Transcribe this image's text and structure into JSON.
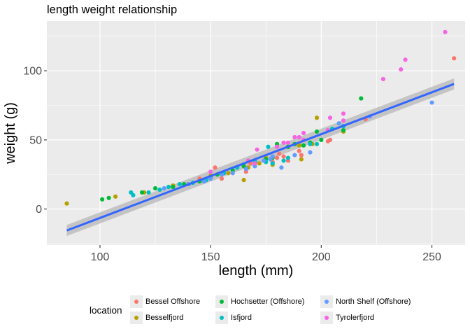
{
  "chart_data": {
    "type": "scatter",
    "title": "length weight relationship",
    "xlabel": "length (mm)",
    "ylabel": "weight (g)",
    "xlim": [
      76,
      265
    ],
    "ylim": [
      -26,
      136
    ],
    "x_ticks": [
      100,
      150,
      200,
      250
    ],
    "y_ticks": [
      0,
      50,
      100
    ],
    "grid": true,
    "legend": {
      "title": "location",
      "placement": "bottom",
      "entries": [
        {
          "name": "Bessel Offshore",
          "color": "#F8766D"
        },
        {
          "name": "Besselfjord",
          "color": "#B79F00"
        },
        {
          "name": "Hochsetter (Offshore)",
          "color": "#00BA38"
        },
        {
          "name": "Isfjord",
          "color": "#00BFC4"
        },
        {
          "name": "North Shelf (Offshore)",
          "color": "#619CFF"
        },
        {
          "name": "Tyrolerfjord",
          "color": "#F564E3"
        }
      ]
    },
    "fit_line": {
      "method": "linear",
      "color": "#3366FF",
      "ribbon_color": "#bdbdbd",
      "x": [
        85,
        260
      ],
      "y": [
        -15.5,
        90.5
      ],
      "se_lower": [
        -19.5,
        86.5
      ],
      "se_upper": [
        -11.5,
        94.5
      ]
    },
    "series": [
      {
        "name": "Bessel Offshore",
        "color": "#F8766D",
        "points": [
          [
            260,
            109
          ],
          [
            220,
            65
          ],
          [
            204,
            50
          ],
          [
            203,
            49
          ],
          [
            195,
            47
          ],
          [
            190,
            42
          ],
          [
            191,
            39
          ],
          [
            181,
            40
          ],
          [
            185,
            35
          ],
          [
            180,
            37
          ],
          [
            178,
            34
          ],
          [
            168,
            33
          ],
          [
            166,
            27
          ],
          [
            155,
            22
          ],
          [
            152,
            30
          ],
          [
            145,
            22
          ],
          [
            183,
            38
          ]
        ]
      },
      {
        "name": "Besselfjord",
        "color": "#B79F00",
        "points": [
          [
            85,
            4
          ],
          [
            107,
            9
          ],
          [
            120,
            12
          ],
          [
            133,
            17
          ],
          [
            140,
            18
          ],
          [
            148,
            21
          ],
          [
            150,
            24
          ],
          [
            158,
            26
          ],
          [
            165,
            21
          ],
          [
            167,
            30
          ],
          [
            172,
            33
          ],
          [
            178,
            32
          ],
          [
            190,
            46
          ],
          [
            191,
            36
          ],
          [
            196,
            47
          ],
          [
            198,
            66
          ],
          [
            210,
            56
          ],
          [
            205,
            58
          ],
          [
            185,
            45
          ],
          [
            175,
            37
          ]
        ]
      },
      {
        "name": "Hochsetter (Offshore)",
        "color": "#00BA38",
        "points": [
          [
            101,
            7
          ],
          [
            104,
            8
          ],
          [
            119,
            12
          ],
          [
            125,
            15
          ],
          [
            133,
            16
          ],
          [
            138,
            18
          ],
          [
            145,
            20
          ],
          [
            150,
            23
          ],
          [
            153,
            25
          ],
          [
            160,
            28
          ],
          [
            165,
            31
          ],
          [
            170,
            34
          ],
          [
            175,
            36
          ],
          [
            178,
            37
          ],
          [
            180,
            47
          ],
          [
            188,
            47
          ],
          [
            195,
            48
          ],
          [
            198,
            56
          ],
          [
            200,
            50
          ],
          [
            210,
            57
          ],
          [
            218,
            80
          ],
          [
            185,
            45
          ],
          [
            192,
            46
          ]
        ]
      },
      {
        "name": "Isfjord",
        "color": "#00BFC4",
        "points": [
          [
            114,
            12
          ],
          [
            115,
            10
          ],
          [
            122,
            12
          ],
          [
            127,
            14
          ],
          [
            131,
            16
          ],
          [
            136,
            18
          ],
          [
            142,
            19
          ],
          [
            148,
            21
          ],
          [
            156,
            26
          ],
          [
            162,
            30
          ],
          [
            170,
            35
          ],
          [
            175,
            34
          ],
          [
            178,
            33
          ],
          [
            183,
            35
          ],
          [
            185,
            37
          ],
          [
            195,
            47
          ],
          [
            198,
            47
          ],
          [
            205,
            58
          ],
          [
            210,
            60
          ],
          [
            176,
            45
          ]
        ]
      },
      {
        "name": "North Shelf (Offshore)",
        "color": "#619CFF",
        "points": [
          [
            129,
            15
          ],
          [
            140,
            18
          ],
          [
            147,
            20
          ],
          [
            150,
            22
          ],
          [
            155,
            25
          ],
          [
            160,
            26
          ],
          [
            166,
            29
          ],
          [
            170,
            31
          ],
          [
            174,
            35
          ],
          [
            177,
            36
          ],
          [
            178,
            38
          ],
          [
            182,
            30
          ],
          [
            188,
            39
          ],
          [
            195,
            41
          ],
          [
            203,
            57
          ],
          [
            208,
            62
          ],
          [
            222,
            67
          ],
          [
            250,
            77
          ]
        ]
      },
      {
        "name": "Tyrolerfjord",
        "color": "#F564E3",
        "points": [
          [
            150,
            27
          ],
          [
            170,
            33
          ],
          [
            171,
            43
          ],
          [
            180,
            45
          ],
          [
            185,
            48
          ],
          [
            190,
            52
          ],
          [
            192,
            55
          ],
          [
            192,
            50
          ],
          [
            203,
            57
          ],
          [
            204,
            66
          ],
          [
            210,
            69
          ],
          [
            210,
            64
          ],
          [
            228,
            94
          ],
          [
            236,
            101
          ],
          [
            238,
            108
          ],
          [
            256,
            128
          ],
          [
            183,
            48
          ],
          [
            188,
            52
          ],
          [
            167,
            35
          ]
        ]
      }
    ]
  }
}
